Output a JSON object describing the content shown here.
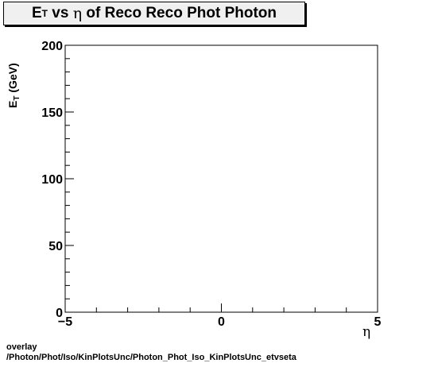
{
  "title": {
    "prefix": "E",
    "prefix_sub": "T",
    "middle": " vs ",
    "greek": "η",
    "suffix": " of Reco Reco Phot Photon"
  },
  "footer": {
    "line1": "overlay",
    "line2": "/Photon/Phot/Iso/KinPlotsUnc/Photon_Phot_Iso_KinPlotsUnc_etvseta"
  },
  "chart_data": {
    "type": "scatter",
    "title": "E_T vs η of Reco Reco Phot Photon",
    "xlabel": "η",
    "ylabel": "E_T (GeV)",
    "xlim": [
      -5,
      5
    ],
    "ylim": [
      0,
      200
    ],
    "x_ticks": [
      -5,
      0,
      5
    ],
    "x_tick_labels": [
      "−5",
      "0",
      "5"
    ],
    "y_ticks": [
      0,
      50,
      100,
      150,
      200
    ],
    "y_tick_labels": [
      "0",
      "50",
      "100",
      "150",
      "200"
    ],
    "y_label_main": "E",
    "y_label_sub": "T",
    "y_label_unit": " (GeV)",
    "series": [],
    "grid": false,
    "legend": "none"
  }
}
